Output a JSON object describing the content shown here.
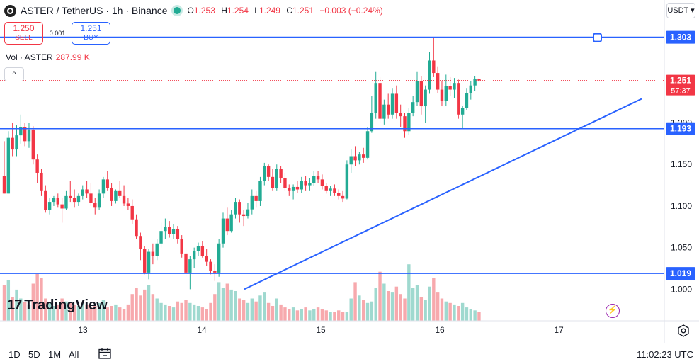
{
  "header": {
    "symbol": "ASTER / TetherUS · 1h · Binance",
    "o_label": "O",
    "o": "1.253",
    "h_label": "H",
    "h": "1.254",
    "l_label": "L",
    "l": "1.249",
    "c_label": "C",
    "c": "1.251",
    "change": "−0.003 (−0.24%)"
  },
  "trade": {
    "sell_price": "1.250",
    "sell_label": "SELL",
    "buy_price": "1.251",
    "buy_label": "BUY",
    "spread": "0.001"
  },
  "volume": {
    "label": "Vol · ASTER",
    "value": "287.99 K"
  },
  "currency": "USDT ▾",
  "collapse": "^",
  "watermark": "TradingView",
  "bottom": {
    "timeframes": [
      "1D",
      "5D",
      "1M",
      "All"
    ],
    "clock": "11:02:23 UTC"
  },
  "colors": {
    "up": "#22ab94",
    "down": "#f23645",
    "line": "#2962ff",
    "up_vol": "#9fd9cf",
    "down_vol": "#f7a9ad"
  },
  "chart_data": {
    "type": "candlestick",
    "x_ticks": [
      "13",
      "14",
      "15",
      "16",
      "17"
    ],
    "y_ticks": [
      "1.000",
      "1.050",
      "1.100",
      "1.150",
      "1.200"
    ],
    "ylim": [
      0.962,
      1.335
    ],
    "price_label": "1.251",
    "countdown": "57:37",
    "hlines": [
      {
        "value": 1.303,
        "label": "1.303"
      },
      {
        "value": 1.193,
        "label": "1.193"
      },
      {
        "value": 1.019,
        "label": "1.019"
      }
    ],
    "trendline": [
      [
        0.999,
        1.186
      ],
      [
        1.0,
        1.229
      ]
    ],
    "candles": [
      [
        1.136,
        1.178,
        1.115,
        1.115
      ],
      [
        1.115,
        1.19,
        1.115,
        1.182
      ],
      [
        1.182,
        1.2,
        1.16,
        1.168
      ],
      [
        1.168,
        1.197,
        1.16,
        1.185
      ],
      [
        1.185,
        1.21,
        1.175,
        1.195
      ],
      [
        1.195,
        1.2,
        1.172,
        1.178
      ],
      [
        1.178,
        1.2,
        1.17,
        1.192
      ],
      [
        1.192,
        1.196,
        1.15,
        1.156
      ],
      [
        1.156,
        1.162,
        1.128,
        1.14
      ],
      [
        1.14,
        1.145,
        1.112,
        1.118
      ],
      [
        1.118,
        1.125,
        1.092,
        1.095
      ],
      [
        1.095,
        1.11,
        1.09,
        1.105
      ],
      [
        1.105,
        1.112,
        1.1,
        1.11
      ],
      [
        1.11,
        1.115,
        1.098,
        1.102
      ],
      [
        1.102,
        1.11,
        1.08,
        1.097
      ],
      [
        1.097,
        1.118,
        1.095,
        1.112
      ],
      [
        1.112,
        1.13,
        1.105,
        1.11
      ],
      [
        1.11,
        1.12,
        1.098,
        1.105
      ],
      [
        1.105,
        1.115,
        1.1,
        1.112
      ],
      [
        1.112,
        1.125,
        1.108,
        1.12
      ],
      [
        1.12,
        1.13,
        1.11,
        1.115
      ],
      [
        1.115,
        1.128,
        1.1,
        1.104
      ],
      [
        1.104,
        1.11,
        1.09,
        1.098
      ],
      [
        1.098,
        1.12,
        1.095,
        1.115
      ],
      [
        1.115,
        1.135,
        1.11,
        1.132
      ],
      [
        1.132,
        1.142,
        1.118,
        1.122
      ],
      [
        1.122,
        1.128,
        1.1,
        1.106
      ],
      [
        1.106,
        1.12,
        1.103,
        1.118
      ],
      [
        1.118,
        1.13,
        1.11,
        1.112
      ],
      [
        1.112,
        1.125,
        1.1,
        1.103
      ],
      [
        1.103,
        1.11,
        1.095,
        1.1
      ],
      [
        1.1,
        1.108,
        1.078,
        1.084
      ],
      [
        1.084,
        1.09,
        1.06,
        1.064
      ],
      [
        1.064,
        1.068,
        1.035,
        1.048
      ],
      [
        1.048,
        1.052,
        1.018,
        1.02
      ],
      [
        1.02,
        1.048,
        1.012,
        1.045
      ],
      [
        1.045,
        1.055,
        1.03,
        1.04
      ],
      [
        1.04,
        1.06,
        1.035,
        1.055
      ],
      [
        1.055,
        1.08,
        1.05,
        1.07
      ],
      [
        1.07,
        1.085,
        1.06,
        1.075
      ],
      [
        1.075,
        1.082,
        1.062,
        1.066
      ],
      [
        1.066,
        1.078,
        1.06,
        1.072
      ],
      [
        1.072,
        1.076,
        1.055,
        1.06
      ],
      [
        1.06,
        1.065,
        1.038,
        1.043
      ],
      [
        1.043,
        1.05,
        1.015,
        1.02
      ],
      [
        1.02,
        1.04,
        1.0,
        1.036
      ],
      [
        1.036,
        1.05,
        1.025,
        1.046
      ],
      [
        1.046,
        1.056,
        1.04,
        1.052
      ],
      [
        1.052,
        1.058,
        1.038,
        1.04
      ],
      [
        1.04,
        1.048,
        1.028,
        1.033
      ],
      [
        1.033,
        1.036,
        1.018,
        1.022
      ],
      [
        1.022,
        1.03,
        1.01,
        1.02
      ],
      [
        1.02,
        1.06,
        1.015,
        1.055
      ],
      [
        1.055,
        1.092,
        1.05,
        1.085
      ],
      [
        1.085,
        1.098,
        1.065,
        1.07
      ],
      [
        1.07,
        1.095,
        1.068,
        1.09
      ],
      [
        1.09,
        1.11,
        1.085,
        1.105
      ],
      [
        1.105,
        1.108,
        1.08,
        1.09
      ],
      [
        1.09,
        1.095,
        1.076,
        1.088
      ],
      [
        1.088,
        1.104,
        1.085,
        1.096
      ],
      [
        1.096,
        1.12,
        1.09,
        1.112
      ],
      [
        1.112,
        1.118,
        1.098,
        1.106
      ],
      [
        1.106,
        1.135,
        1.1,
        1.13
      ],
      [
        1.13,
        1.152,
        1.125,
        1.148
      ],
      [
        1.148,
        1.15,
        1.13,
        1.135
      ],
      [
        1.135,
        1.145,
        1.118,
        1.122
      ],
      [
        1.122,
        1.15,
        1.118,
        1.145
      ],
      [
        1.145,
        1.148,
        1.128,
        1.134
      ],
      [
        1.134,
        1.14,
        1.118,
        1.122
      ],
      [
        1.122,
        1.126,
        1.112,
        1.118
      ],
      [
        1.118,
        1.126,
        1.108,
        1.123
      ],
      [
        1.123,
        1.13,
        1.116,
        1.12
      ],
      [
        1.12,
        1.135,
        1.116,
        1.13
      ],
      [
        1.13,
        1.136,
        1.118,
        1.125
      ],
      [
        1.125,
        1.134,
        1.118,
        1.128
      ],
      [
        1.128,
        1.142,
        1.124,
        1.136
      ],
      [
        1.136,
        1.142,
        1.128,
        1.132
      ],
      [
        1.132,
        1.138,
        1.12,
        1.124
      ],
      [
        1.124,
        1.128,
        1.115,
        1.118
      ],
      [
        1.118,
        1.124,
        1.112,
        1.121
      ],
      [
        1.121,
        1.126,
        1.112,
        1.116
      ],
      [
        1.116,
        1.12,
        1.108,
        1.112
      ],
      [
        1.112,
        1.118,
        1.105,
        1.109
      ],
      [
        1.109,
        1.155,
        1.108,
        1.15
      ],
      [
        1.15,
        1.168,
        1.14,
        1.16
      ],
      [
        1.16,
        1.172,
        1.148,
        1.155
      ],
      [
        1.155,
        1.165,
        1.15,
        1.162
      ],
      [
        1.162,
        1.17,
        1.152,
        1.158
      ],
      [
        1.158,
        1.195,
        1.156,
        1.19
      ],
      [
        1.19,
        1.232,
        1.188,
        1.212
      ],
      [
        1.212,
        1.262,
        1.205,
        1.248
      ],
      [
        1.248,
        1.255,
        1.2,
        1.205
      ],
      [
        1.205,
        1.228,
        1.198,
        1.222
      ],
      [
        1.222,
        1.235,
        1.205,
        1.21
      ],
      [
        1.21,
        1.242,
        1.205,
        1.235
      ],
      [
        1.235,
        1.245,
        1.205,
        1.212
      ],
      [
        1.212,
        1.222,
        1.195,
        1.208
      ],
      [
        1.208,
        1.212,
        1.182,
        1.19
      ],
      [
        1.19,
        1.218,
        1.186,
        1.212
      ],
      [
        1.212,
        1.232,
        1.208,
        1.225
      ],
      [
        1.225,
        1.262,
        1.22,
        1.25
      ],
      [
        1.25,
        1.256,
        1.21,
        1.22
      ],
      [
        1.22,
        1.245,
        1.2,
        1.24
      ],
      [
        1.24,
        1.285,
        1.235,
        1.275
      ],
      [
        1.275,
        1.303,
        1.255,
        1.26
      ],
      [
        1.26,
        1.268,
        1.236,
        1.24
      ],
      [
        1.24,
        1.25,
        1.22,
        1.226
      ],
      [
        1.226,
        1.258,
        1.22,
        1.244
      ],
      [
        1.244,
        1.255,
        1.232,
        1.24
      ],
      [
        1.24,
        1.254,
        1.23,
        1.248
      ],
      [
        1.248,
        1.252,
        1.205,
        1.21
      ],
      [
        1.21,
        1.22,
        1.193,
        1.218
      ],
      [
        1.218,
        1.242,
        1.215,
        1.236
      ],
      [
        1.236,
        1.25,
        1.228,
        1.245
      ],
      [
        1.245,
        1.256,
        1.238,
        1.253
      ],
      [
        1.253,
        1.254,
        1.249,
        1.251
      ]
    ],
    "volumes": [
      0.48,
      0.55,
      0.32,
      0.42,
      0.3,
      0.25,
      0.22,
      0.5,
      0.63,
      0.58,
      0.3,
      0.25,
      0.2,
      0.22,
      0.3,
      0.26,
      0.24,
      0.22,
      0.2,
      0.24,
      0.22,
      0.18,
      0.2,
      0.24,
      0.28,
      0.18,
      0.2,
      0.22,
      0.18,
      0.16,
      0.22,
      0.36,
      0.44,
      0.34,
      0.42,
      0.48,
      0.36,
      0.3,
      0.24,
      0.22,
      0.2,
      0.18,
      0.26,
      0.24,
      0.28,
      0.24,
      0.22,
      0.2,
      0.18,
      0.16,
      0.24,
      0.36,
      0.52,
      0.44,
      0.5,
      0.42,
      0.4,
      0.3,
      0.28,
      0.24,
      0.3,
      0.26,
      0.34,
      0.38,
      0.24,
      0.2,
      0.3,
      0.22,
      0.18,
      0.16,
      0.18,
      0.14,
      0.16,
      0.18,
      0.14,
      0.16,
      0.18,
      0.16,
      0.14,
      0.12,
      0.12,
      0.14,
      0.12,
      0.12,
      0.3,
      0.52,
      0.34,
      0.28,
      0.24,
      0.26,
      0.44,
      0.66,
      0.5,
      0.4,
      0.38,
      0.46,
      0.36,
      0.3,
      0.76,
      0.44,
      0.48,
      0.32,
      0.28,
      0.46,
      0.58,
      0.38,
      0.3,
      0.26,
      0.24,
      0.22,
      0.2,
      0.24,
      0.18,
      0.16,
      0.14,
      0.12
    ]
  }
}
